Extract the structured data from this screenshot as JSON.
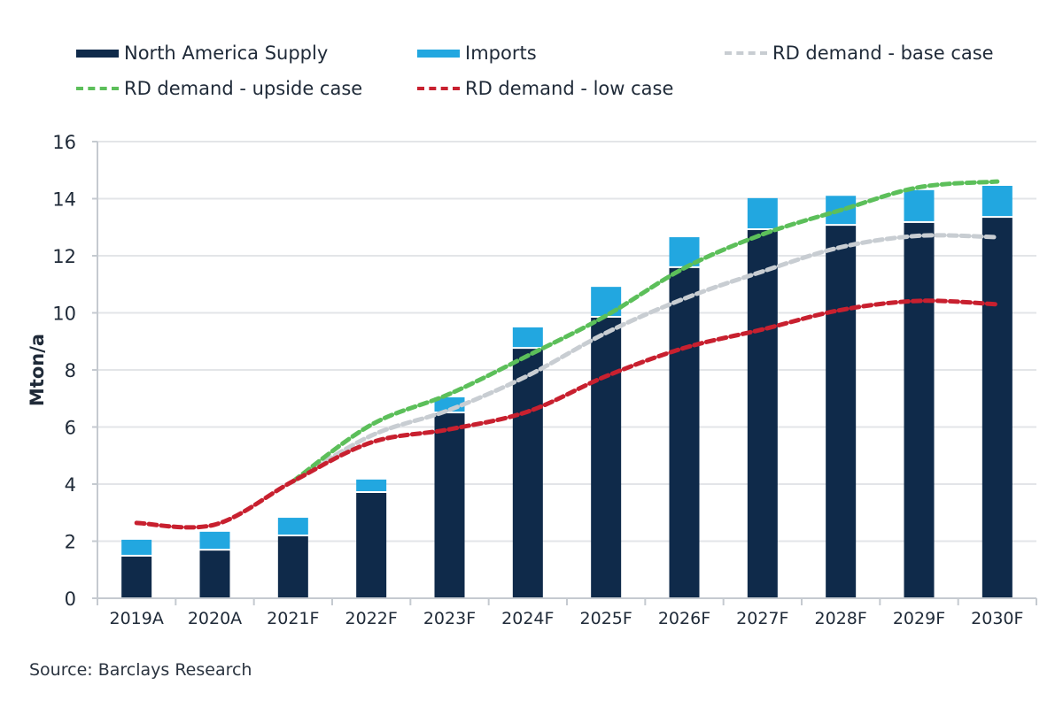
{
  "chart_data": {
    "type": "bar",
    "stacked": true,
    "title": "",
    "xlabel": "",
    "ylabel": "Mton/a",
    "ylim": [
      0,
      16
    ],
    "yticks": [
      0,
      2,
      4,
      6,
      8,
      10,
      12,
      14,
      16
    ],
    "grid": true,
    "legend_position": "top",
    "categories": [
      "2019A",
      "2020A",
      "2021F",
      "2022F",
      "2023F",
      "2024F",
      "2025F",
      "2026F",
      "2027F",
      "2028F",
      "2029F",
      "2030F"
    ],
    "series": [
      {
        "name": "North America Supply",
        "kind": "bar",
        "color": "#0f2a4a",
        "values": [
          1.46,
          1.67,
          2.17,
          3.69,
          6.48,
          8.74,
          9.83,
          11.57,
          12.9,
          13.05,
          13.15,
          13.33
        ]
      },
      {
        "name": "Imports",
        "kind": "bar",
        "color": "#22a7e0",
        "values": [
          0.59,
          0.66,
          0.65,
          0.47,
          0.56,
          0.75,
          1.08,
          1.08,
          1.12,
          1.05,
          1.15,
          1.12
        ]
      },
      {
        "name": "RD demand - base case",
        "kind": "line",
        "style": "dashed",
        "color": "#c8cdd2",
        "values": [
          null,
          null,
          4.1,
          5.7,
          6.6,
          7.8,
          9.3,
          10.5,
          11.45,
          12.3,
          12.7,
          12.65
        ]
      },
      {
        "name": "RD demand - upside case",
        "kind": "line",
        "style": "dashed",
        "color": "#5cbf5a",
        "values": [
          null,
          null,
          4.1,
          6.08,
          7.16,
          8.5,
          9.9,
          11.57,
          12.75,
          13.6,
          14.4,
          14.6
        ]
      },
      {
        "name": "RD demand - low case",
        "kind": "line",
        "style": "dashed",
        "color": "#c8202f",
        "values": [
          2.64,
          2.58,
          4.1,
          5.46,
          5.92,
          6.54,
          7.78,
          8.77,
          9.42,
          10.1,
          10.42,
          10.3
        ]
      }
    ]
  },
  "legend": {
    "items": [
      {
        "label": "North America Supply"
      },
      {
        "label": "Imports"
      },
      {
        "label": "RD demand - base case"
      },
      {
        "label": "RD demand - upside case"
      },
      {
        "label": "RD demand - low case"
      }
    ]
  },
  "source": "Source: Barclays Research"
}
